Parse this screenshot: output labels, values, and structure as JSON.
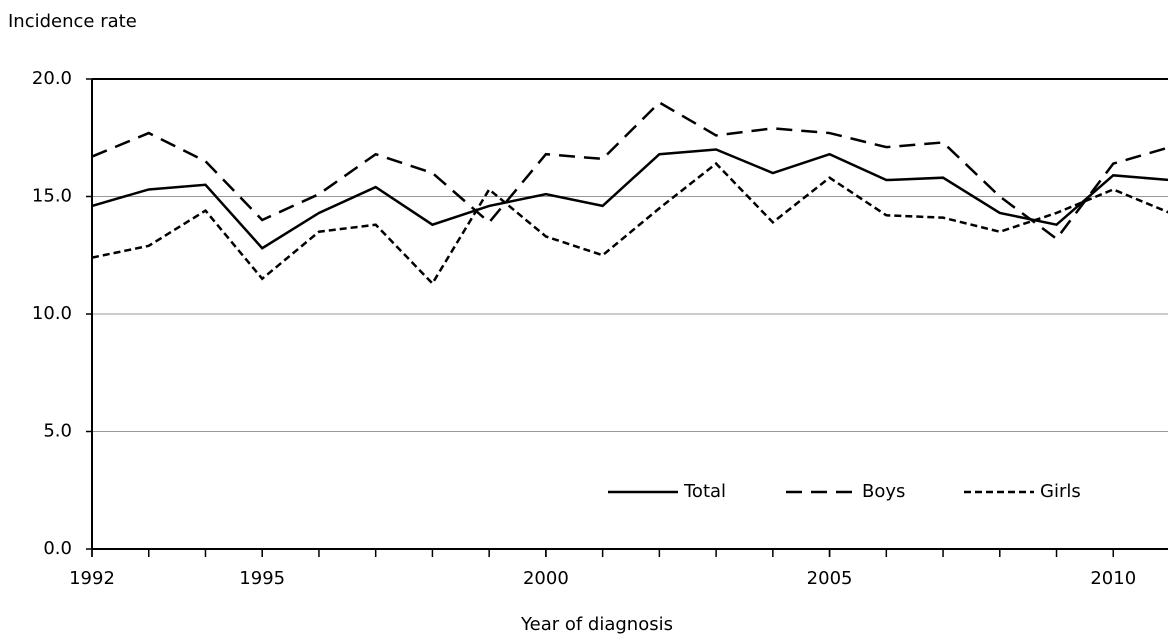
{
  "chart_data": {
    "type": "line",
    "y_label": "Incidence rate",
    "x_label": "Year of diagnosis",
    "x": [
      1992,
      1993,
      1994,
      1995,
      1996,
      1997,
      1998,
      1999,
      2000,
      2001,
      2002,
      2003,
      2004,
      2005,
      2006,
      2007,
      2008,
      2009,
      2010,
      2011
    ],
    "series": [
      {
        "name": "Total",
        "color": "#000000",
        "dash": "solid",
        "values": [
          14.6,
          15.3,
          15.5,
          12.8,
          14.3,
          15.4,
          13.8,
          14.6,
          15.1,
          14.6,
          16.8,
          17.0,
          16.0,
          16.8,
          15.7,
          15.8,
          14.3,
          13.8,
          15.9,
          15.7
        ]
      },
      {
        "name": "Boys",
        "color": "#000000",
        "dash": "dashed",
        "values": [
          16.7,
          17.7,
          16.5,
          14.0,
          15.1,
          16.8,
          16.0,
          13.9,
          16.8,
          16.6,
          19.0,
          17.6,
          17.9,
          17.7,
          17.1,
          17.3,
          15.0,
          13.2,
          16.4,
          17.1
        ]
      },
      {
        "name": "Girls",
        "color": "#000000",
        "dash": "dotted",
        "values": [
          12.4,
          12.9,
          14.4,
          11.5,
          13.5,
          13.8,
          11.3,
          15.3,
          13.3,
          12.5,
          14.5,
          16.4,
          13.9,
          15.8,
          14.2,
          14.1,
          13.5,
          14.3,
          15.3,
          14.3
        ]
      }
    ],
    "xlim": [
      1992,
      2011
    ],
    "xticks": [
      1992,
      1995,
      2000,
      2005,
      2010
    ],
    "ylim": [
      0,
      20
    ],
    "yticks": [
      {
        "value": 0,
        "label": "0.0"
      },
      {
        "value": 5,
        "label": "5.0"
      },
      {
        "value": 10,
        "label": "10.0"
      },
      {
        "value": 15,
        "label": "15.0"
      },
      {
        "value": 20,
        "label": "20.0"
      }
    ],
    "grid": true,
    "legend": "lower-right"
  }
}
